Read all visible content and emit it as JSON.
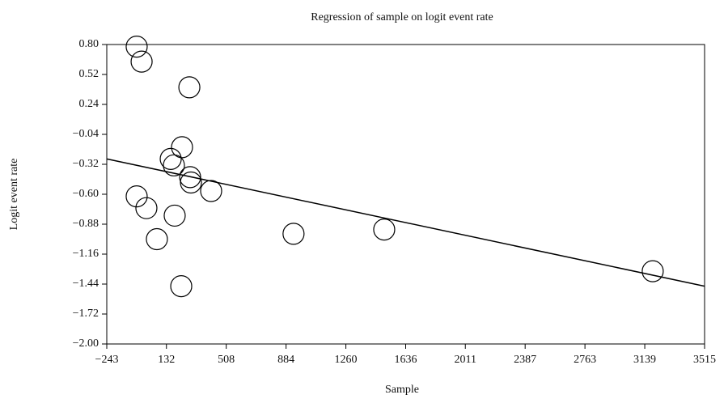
{
  "chart_data": {
    "type": "scatter",
    "title": "Regression of sample on logit event rate",
    "x_label": "Sample",
    "y_label": "Logit event rate",
    "x": [
      -55,
      -24,
      276,
      230,
      159,
      179,
      281,
      286,
      413,
      -55,
      6,
      184,
      72,
      225,
      931,
      1501,
      3189
    ],
    "values": [
      0.78,
      0.64,
      0.4,
      -0.16,
      -0.27,
      -0.33,
      -0.44,
      -0.49,
      -0.57,
      -0.62,
      -0.73,
      -0.8,
      -1.02,
      -1.46,
      -0.97,
      -0.93,
      -1.32
    ],
    "color": "#000000",
    "regression": {
      "x": [
        -243,
        3515
      ],
      "values": [
        -0.27,
        -1.46
      ]
    },
    "xlim": [
      -243,
      3515
    ],
    "ylim": [
      -2.0,
      0.8
    ],
    "xticks": [
      {
        "value": -243,
        "label": "−243"
      },
      132,
      508,
      884,
      1260,
      1636,
      2011,
      2387,
      2763,
      3139,
      3515
    ],
    "yticks": [
      {
        "value": 0.8,
        "label": "0.80"
      },
      {
        "value": 0.52,
        "label": "0.52"
      },
      {
        "value": 0.24,
        "label": "0.24"
      },
      {
        "value": -0.04,
        "label": "−0.04"
      },
      {
        "value": -0.32,
        "label": "−0.32"
      },
      {
        "value": -0.6,
        "label": "−0.60"
      },
      {
        "value": -0.88,
        "label": "−0.88"
      },
      {
        "value": -1.16,
        "label": "−1.16"
      },
      {
        "value": -1.44,
        "label": "−1.44"
      },
      {
        "value": -1.72,
        "label": "−1.72"
      },
      {
        "value": -2.0,
        "label": "−2.00"
      }
    ]
  }
}
